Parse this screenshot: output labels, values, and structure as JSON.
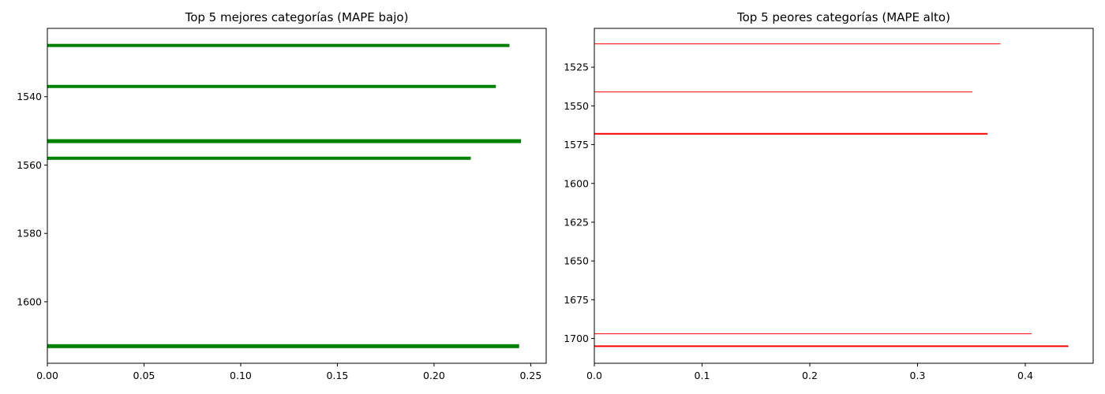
{
  "chart_data": [
    {
      "type": "bar",
      "orientation": "horizontal",
      "title": "Top 5 mejores categorías (MAPE bajo)",
      "xlabel": "",
      "ylabel": "",
      "color": "#008000",
      "xlim": [
        0,
        0.258
      ],
      "ylim": [
        1618,
        1520
      ],
      "xticks": [
        "0.00",
        "0.05",
        "0.10",
        "0.15",
        "0.20",
        "0.25"
      ],
      "yticks": [
        "1540",
        "1560",
        "1580",
        "1600"
      ],
      "bars": [
        {
          "category": 1525,
          "value": 0.239
        },
        {
          "category": 1537,
          "value": 0.232
        },
        {
          "category": 1553,
          "value": 0.245
        },
        {
          "category": 1558,
          "value": 0.219
        },
        {
          "category": 1613,
          "value": 0.244
        }
      ],
      "grid": false,
      "legend": "none"
    },
    {
      "type": "bar",
      "orientation": "horizontal",
      "title": "Top 5 peores categorías (MAPE alto)",
      "xlabel": "",
      "ylabel": "",
      "color": "#ff0000",
      "xlim": [
        0,
        0.463
      ],
      "ylim": [
        1716,
        1500
      ],
      "xticks": [
        "0.0",
        "0.1",
        "0.2",
        "0.3",
        "0.4"
      ],
      "yticks": [
        "1525",
        "1550",
        "1575",
        "1600",
        "1625",
        "1650",
        "1675",
        "1700"
      ],
      "bars": [
        {
          "category": 1510,
          "value": 0.377
        },
        {
          "category": 1541,
          "value": 0.351
        },
        {
          "category": 1568,
          "value": 0.365
        },
        {
          "category": 1697,
          "value": 0.406
        },
        {
          "category": 1705,
          "value": 0.44
        }
      ],
      "grid": false,
      "legend": "none"
    }
  ]
}
